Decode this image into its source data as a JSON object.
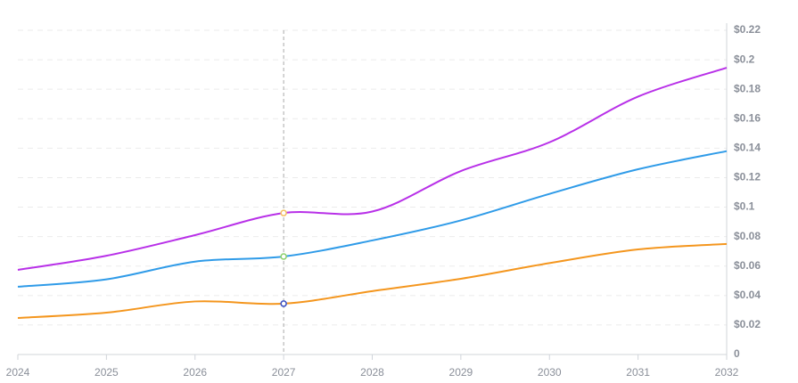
{
  "chart_data": {
    "type": "line",
    "x": [
      2024,
      2025,
      2026,
      2027,
      2028,
      2029,
      2030,
      2031,
      2032
    ],
    "xlim": [
      2024,
      2032
    ],
    "xticks": [
      2024,
      2025,
      2026,
      2027,
      2028,
      2029,
      2030,
      2031,
      2032
    ],
    "ylim": [
      0,
      0.22
    ],
    "yticks": [
      0,
      {
        "value": 0.02,
        "label": "$0.02"
      },
      {
        "value": 0.04,
        "label": "$0.04"
      },
      {
        "value": 0.06,
        "label": "$0.06"
      },
      {
        "value": 0.08,
        "label": "$0.08"
      },
      {
        "value": 0.1,
        "label": "$0.1"
      },
      {
        "value": 0.12,
        "label": "$0.12"
      },
      {
        "value": 0.14,
        "label": "$0.14"
      },
      {
        "value": 0.16,
        "label": "$0.16"
      },
      {
        "value": 0.18,
        "label": "$0.18"
      },
      {
        "value": 0.2,
        "label": "$0.2"
      },
      {
        "value": 0.22,
        "label": "$0.22"
      }
    ],
    "grid": true,
    "series": [
      {
        "color": "#b830e8",
        "values": [
          0.0574,
          0.067,
          0.081,
          0.096,
          0.097,
          0.1245,
          0.144,
          0.175,
          0.1946
        ]
      },
      {
        "color": "#2f9be8",
        "values": [
          0.046,
          0.051,
          0.063,
          0.0665,
          0.0774,
          0.091,
          0.109,
          0.1257,
          0.138
        ]
      },
      {
        "color": "#f4961e",
        "values": [
          0.0248,
          0.0284,
          0.036,
          0.0345,
          0.043,
          0.0514,
          0.062,
          0.0713,
          0.075
        ]
      }
    ]
  }
}
